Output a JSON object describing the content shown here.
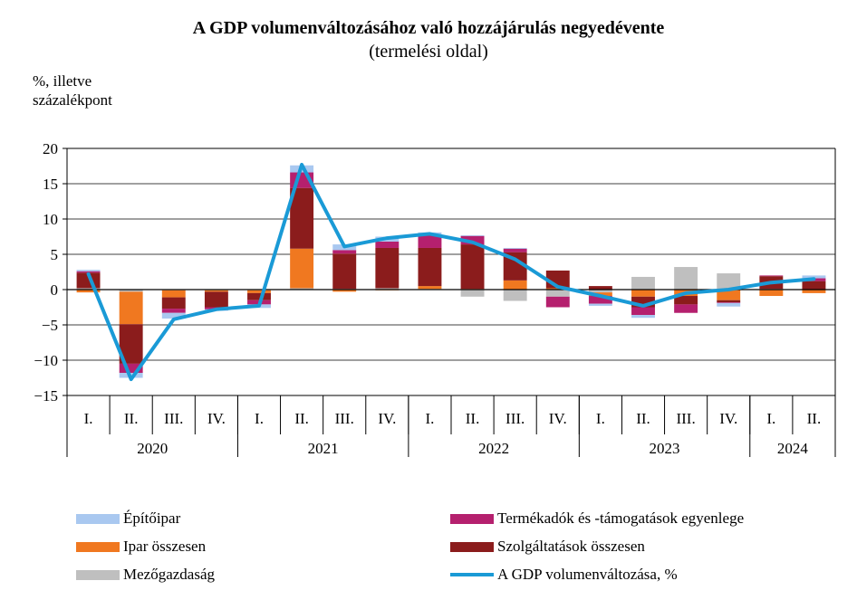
{
  "chart_data": {
    "type": "bar",
    "title": "A GDP volumenváltozásához való hozzájárulás negyedévente",
    "subtitle": "(termelési oldal)",
    "ylabel_line1": "%, illetve",
    "ylabel_line2": "százalékpont",
    "ylim": [
      -15,
      20
    ],
    "yticks": [
      -15,
      -10,
      -5,
      0,
      5,
      10,
      15,
      20
    ],
    "ytick_labels": [
      "−15",
      "−10",
      "−5",
      "0",
      "5",
      "10",
      "15",
      "20"
    ],
    "grid": true,
    "stacked": true,
    "categories": [
      "I.",
      "II.",
      "III.",
      "IV.",
      "I.",
      "II.",
      "III.",
      "IV.",
      "I.",
      "II.",
      "III.",
      "IV.",
      "I.",
      "II.",
      "III.",
      "IV.",
      "I.",
      "II."
    ],
    "years": [
      {
        "label": "2020",
        "quarters": 4
      },
      {
        "label": "2021",
        "quarters": 4
      },
      {
        "label": "2022",
        "quarters": 4
      },
      {
        "label": "2023",
        "quarters": 4
      },
      {
        "label": "2024",
        "quarters": 2
      }
    ],
    "series": [
      {
        "name": "Mezőgazdaság",
        "color": "#bfbfbf",
        "values": [
          0.2,
          -0.3,
          -0.1,
          -0.1,
          -0.1,
          0.2,
          0.1,
          0.2,
          0.1,
          -1.0,
          -1.6,
          -1.0,
          -0.4,
          1.8,
          3.2,
          2.3,
          0.1,
          0.0
        ]
      },
      {
        "name": "Ipar összesen",
        "color": "#f07820",
        "values": [
          -0.4,
          -4.6,
          -1.0,
          -0.2,
          -0.4,
          5.6,
          -0.3,
          -0.1,
          0.4,
          0.1,
          1.3,
          0.2,
          -0.5,
          -1.0,
          -0.9,
          -1.5,
          -0.9,
          -0.5
        ]
      },
      {
        "name": "Szolgáltatások összesen",
        "color": "#8b1c1c",
        "values": [
          2.2,
          -5.6,
          -1.6,
          -2.2,
          -1.0,
          8.6,
          5.0,
          5.7,
          5.4,
          6.3,
          4.0,
          2.5,
          0.5,
          -1.5,
          -1.2,
          -0.3,
          1.8,
          1.2
        ]
      },
      {
        "name": "Termékadók és -támogatások egyenlege",
        "color": "#b5206e",
        "values": [
          0.2,
          -1.3,
          -0.6,
          -0.3,
          -0.6,
          2.2,
          0.5,
          0.9,
          1.8,
          1.2,
          0.5,
          -1.5,
          -1.1,
          -1.1,
          -1.2,
          -0.1,
          0.1,
          0.4
        ]
      },
      {
        "name": "Építőipar",
        "color": "#a9c8f0",
        "values": [
          0.2,
          -0.7,
          -0.8,
          -0.2,
          -0.5,
          1.0,
          0.8,
          0.7,
          0.4,
          0.1,
          0.1,
          0.0,
          -0.3,
          -0.4,
          0.0,
          -0.5,
          0.0,
          0.4
        ]
      }
    ],
    "line": {
      "name": "A GDP volumenváltozása, %",
      "color": "#1a9ad6",
      "values": [
        2.2,
        -12.7,
        -4.2,
        -2.8,
        -2.3,
        17.7,
        6.1,
        7.3,
        7.9,
        6.7,
        4.3,
        0.4,
        -0.9,
        -2.3,
        -0.5,
        0.0,
        1.0,
        1.5
      ]
    },
    "legend_placement": "bottom"
  },
  "legend": {
    "left": [
      "Építőipar",
      "Ipar összesen",
      "Mezőgazdaság"
    ],
    "right": [
      "Termékadók és -támogatások egyenlege",
      "Szolgáltatások összesen",
      "A GDP volumenváltozása, %"
    ]
  },
  "colors": {
    "mezogazdasag": "#bfbfbf",
    "ipar": "#f07820",
    "szolgaltatasok": "#8b1c1c",
    "termekadok": "#b5206e",
    "epitoipar": "#a9c8f0",
    "gdp_line": "#1a9ad6"
  }
}
